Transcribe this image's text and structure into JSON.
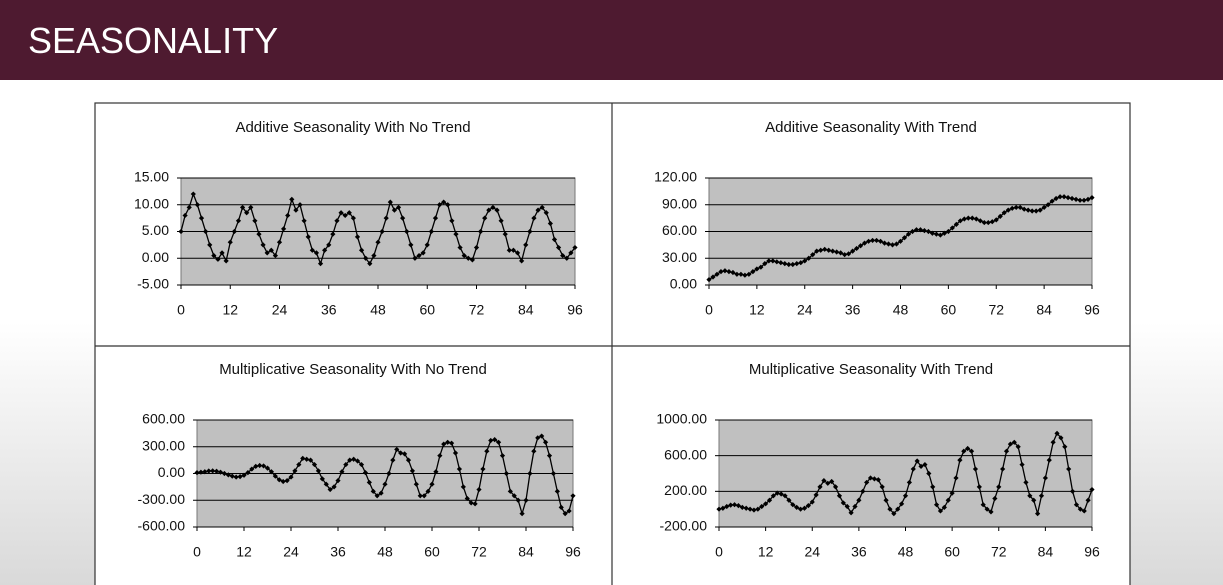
{
  "header": {
    "title": "SEASONALITY"
  },
  "chart_data": [
    {
      "type": "line",
      "title": "Additive Seasonality With No Trend",
      "color": "#000000",
      "grid": true,
      "x": [
        0,
        1,
        2,
        3,
        4,
        5,
        6,
        7,
        8,
        9,
        10,
        11,
        12,
        13,
        14,
        15,
        16,
        17,
        18,
        19,
        20,
        21,
        22,
        23,
        24,
        25,
        26,
        27,
        28,
        29,
        30,
        31,
        32,
        33,
        34,
        35,
        36,
        37,
        38,
        39,
        40,
        41,
        42,
        43,
        44,
        45,
        46,
        47,
        48,
        49,
        50,
        51,
        52,
        53,
        54,
        55,
        56,
        57,
        58,
        59,
        60,
        61,
        62,
        63,
        64,
        65,
        66,
        67,
        68,
        69,
        70,
        71,
        72,
        73,
        74,
        75,
        76,
        77,
        78,
        79,
        80,
        81,
        82,
        83,
        84,
        85,
        86,
        87,
        88,
        89,
        90,
        91,
        92,
        93,
        94,
        95,
        96
      ],
      "values": [
        5,
        8,
        9.5,
        12,
        10,
        7.5,
        5,
        2.5,
        0.5,
        -0.2,
        1,
        -0.5,
        3,
        5,
        7,
        9.5,
        8.5,
        9.5,
        7,
        4.5,
        2.5,
        1,
        1.5,
        0.5,
        3,
        5.5,
        8,
        11,
        9,
        10,
        7,
        4,
        1.5,
        1,
        -1,
        1.5,
        2.5,
        4.5,
        7,
        8.5,
        8,
        8.5,
        7.5,
        4,
        1.5,
        0,
        -1,
        0.5,
        3,
        5,
        7.5,
        10.5,
        9,
        9.5,
        7.5,
        5,
        2.5,
        0,
        0.5,
        1,
        2.5,
        5,
        7.5,
        10,
        10.5,
        10,
        7,
        4.5,
        2,
        0.5,
        0,
        -0.3,
        2,
        5,
        7.5,
        9,
        9.5,
        9,
        7,
        4.5,
        1.5,
        1.5,
        1,
        -0.5,
        2.5,
        5,
        7.5,
        9,
        9.5,
        8.5,
        6.5,
        3.5,
        2,
        0.5,
        0,
        1,
        2
      ],
      "xlim": [
        0,
        96
      ],
      "xticks": [
        0,
        12,
        24,
        36,
        48,
        60,
        72,
        84,
        96
      ],
      "ylim": [
        -5,
        15
      ],
      "yticks": [
        {
          "value": -5,
          "label": "-5.00"
        },
        {
          "value": 0,
          "label": "0.00"
        },
        {
          "value": 5,
          "label": "5.00"
        },
        {
          "value": 10,
          "label": "10.00"
        },
        {
          "value": 15,
          "label": "15.00"
        }
      ]
    },
    {
      "type": "line",
      "title": "Additive Seasonality With Trend",
      "color": "#000000",
      "grid": true,
      "x": [
        0,
        1,
        2,
        3,
        4,
        5,
        6,
        7,
        8,
        9,
        10,
        11,
        12,
        13,
        14,
        15,
        16,
        17,
        18,
        19,
        20,
        21,
        22,
        23,
        24,
        25,
        26,
        27,
        28,
        29,
        30,
        31,
        32,
        33,
        34,
        35,
        36,
        37,
        38,
        39,
        40,
        41,
        42,
        43,
        44,
        45,
        46,
        47,
        48,
        49,
        50,
        51,
        52,
        53,
        54,
        55,
        56,
        57,
        58,
        59,
        60,
        61,
        62,
        63,
        64,
        65,
        66,
        67,
        68,
        69,
        70,
        71,
        72,
        73,
        74,
        75,
        76,
        77,
        78,
        79,
        80,
        81,
        82,
        83,
        84,
        85,
        86,
        87,
        88,
        89,
        90,
        91,
        92,
        93,
        94,
        95,
        96
      ],
      "values": [
        6,
        9,
        12,
        15,
        16,
        15,
        14,
        12,
        12,
        11,
        12,
        15,
        18,
        20,
        24,
        27,
        27,
        26,
        25,
        24,
        23,
        23,
        24,
        25,
        27,
        30,
        34,
        38,
        39,
        40,
        39,
        38,
        37,
        36,
        34,
        35,
        38,
        41,
        44,
        47,
        49,
        50,
        50,
        49,
        47,
        46,
        45,
        46,
        49,
        53,
        57,
        60,
        62,
        62,
        61,
        60,
        58,
        57,
        56,
        58,
        60,
        64,
        68,
        72,
        74,
        75,
        75,
        74,
        72,
        70,
        70,
        71,
        73,
        77,
        81,
        84,
        86,
        87,
        87,
        85,
        84,
        83,
        83,
        84,
        87,
        90,
        94,
        97,
        99,
        99,
        98,
        97,
        96,
        95,
        95,
        96,
        98
      ],
      "xlim": [
        0,
        96
      ],
      "xticks": [
        0,
        12,
        24,
        36,
        48,
        60,
        72,
        84,
        96
      ],
      "ylim": [
        0,
        120
      ],
      "yticks": [
        {
          "value": 0,
          "label": "0.00"
        },
        {
          "value": 30,
          "label": "30.00"
        },
        {
          "value": 60,
          "label": "60.00"
        },
        {
          "value": 90,
          "label": "90.00"
        },
        {
          "value": 120,
          "label": "120.00"
        }
      ]
    },
    {
      "type": "line",
      "title": "Multiplicative Seasonality With No Trend",
      "color": "#000000",
      "grid": true,
      "x": [
        0,
        1,
        2,
        3,
        4,
        5,
        6,
        7,
        8,
        9,
        10,
        11,
        12,
        13,
        14,
        15,
        16,
        17,
        18,
        19,
        20,
        21,
        22,
        23,
        24,
        25,
        26,
        27,
        28,
        29,
        30,
        31,
        32,
        33,
        34,
        35,
        36,
        37,
        38,
        39,
        40,
        41,
        42,
        43,
        44,
        45,
        46,
        47,
        48,
        49,
        50,
        51,
        52,
        53,
        54,
        55,
        56,
        57,
        58,
        59,
        60,
        61,
        62,
        63,
        64,
        65,
        66,
        67,
        68,
        69,
        70,
        71,
        72,
        73,
        74,
        75,
        76,
        77,
        78,
        79,
        80,
        81,
        82,
        83,
        84,
        85,
        86,
        87,
        88,
        89,
        90,
        91,
        92,
        93,
        94,
        95,
        96
      ],
      "values": [
        10,
        15,
        20,
        28,
        30,
        25,
        15,
        0,
        -15,
        -30,
        -40,
        -35,
        -20,
        10,
        50,
        80,
        90,
        85,
        60,
        20,
        -30,
        -70,
        -90,
        -80,
        -40,
        30,
        100,
        170,
        160,
        150,
        100,
        30,
        -60,
        -120,
        -180,
        -150,
        -80,
        20,
        100,
        150,
        160,
        140,
        100,
        10,
        -100,
        -200,
        -250,
        -220,
        -120,
        0,
        150,
        270,
        230,
        220,
        150,
        30,
        -120,
        -250,
        -250,
        -200,
        -120,
        20,
        200,
        330,
        350,
        340,
        230,
        50,
        -150,
        -280,
        -330,
        -340,
        -180,
        50,
        250,
        370,
        380,
        350,
        200,
        0,
        -200,
        -250,
        -300,
        -450,
        -300,
        0,
        250,
        400,
        420,
        350,
        200,
        0,
        -200,
        -380,
        -450,
        -420,
        -250
      ],
      "xlim": [
        0,
        96
      ],
      "xticks": [
        0,
        12,
        24,
        36,
        48,
        60,
        72,
        84,
        96
      ],
      "ylim": [
        -600,
        600
      ],
      "yticks": [
        {
          "value": -600,
          "label": "-600.00"
        },
        {
          "value": -300,
          "label": "-300.00"
        },
        {
          "value": 0,
          "label": "0.00"
        },
        {
          "value": 300,
          "label": "300.00"
        },
        {
          "value": 600,
          "label": "600.00"
        }
      ]
    },
    {
      "type": "line",
      "title": "Multiplicative Seasonality With Trend",
      "color": "#000000",
      "grid": true,
      "x": [
        0,
        1,
        2,
        3,
        4,
        5,
        6,
        7,
        8,
        9,
        10,
        11,
        12,
        13,
        14,
        15,
        16,
        17,
        18,
        19,
        20,
        21,
        22,
        23,
        24,
        25,
        26,
        27,
        28,
        29,
        30,
        31,
        32,
        33,
        34,
        35,
        36,
        37,
        38,
        39,
        40,
        41,
        42,
        43,
        44,
        45,
        46,
        47,
        48,
        49,
        50,
        51,
        52,
        53,
        54,
        55,
        56,
        57,
        58,
        59,
        60,
        61,
        62,
        63,
        64,
        65,
        66,
        67,
        68,
        69,
        70,
        71,
        72,
        73,
        74,
        75,
        76,
        77,
        78,
        79,
        80,
        81,
        82,
        83,
        84,
        85,
        86,
        87,
        88,
        89,
        90,
        91,
        92,
        93,
        94,
        95,
        96
      ],
      "values": [
        0,
        10,
        30,
        45,
        50,
        40,
        20,
        10,
        0,
        -10,
        0,
        30,
        60,
        100,
        150,
        180,
        170,
        150,
        100,
        50,
        20,
        0,
        10,
        40,
        80,
        160,
        250,
        320,
        290,
        310,
        250,
        150,
        70,
        30,
        -40,
        30,
        100,
        200,
        300,
        350,
        340,
        330,
        250,
        100,
        0,
        -50,
        0,
        60,
        150,
        300,
        450,
        540,
        480,
        500,
        400,
        250,
        50,
        -20,
        20,
        100,
        180,
        350,
        550,
        650,
        680,
        650,
        450,
        250,
        50,
        0,
        -30,
        120,
        250,
        450,
        650,
        730,
        750,
        700,
        500,
        300,
        150,
        100,
        -50,
        150,
        350,
        550,
        750,
        850,
        800,
        700,
        450,
        200,
        50,
        0,
        -20,
        100,
        220
      ],
      "xlim": [
        0,
        96
      ],
      "xticks": [
        0,
        12,
        24,
        36,
        48,
        60,
        72,
        84,
        96
      ],
      "ylim": [
        -200,
        1000
      ],
      "yticks": [
        {
          "value": -200,
          "label": "-200.00"
        },
        {
          "value": 200,
          "label": "200.00"
        },
        {
          "value": 600,
          "label": "600.00"
        },
        {
          "value": 1000,
          "label": "1000.00"
        }
      ]
    }
  ]
}
